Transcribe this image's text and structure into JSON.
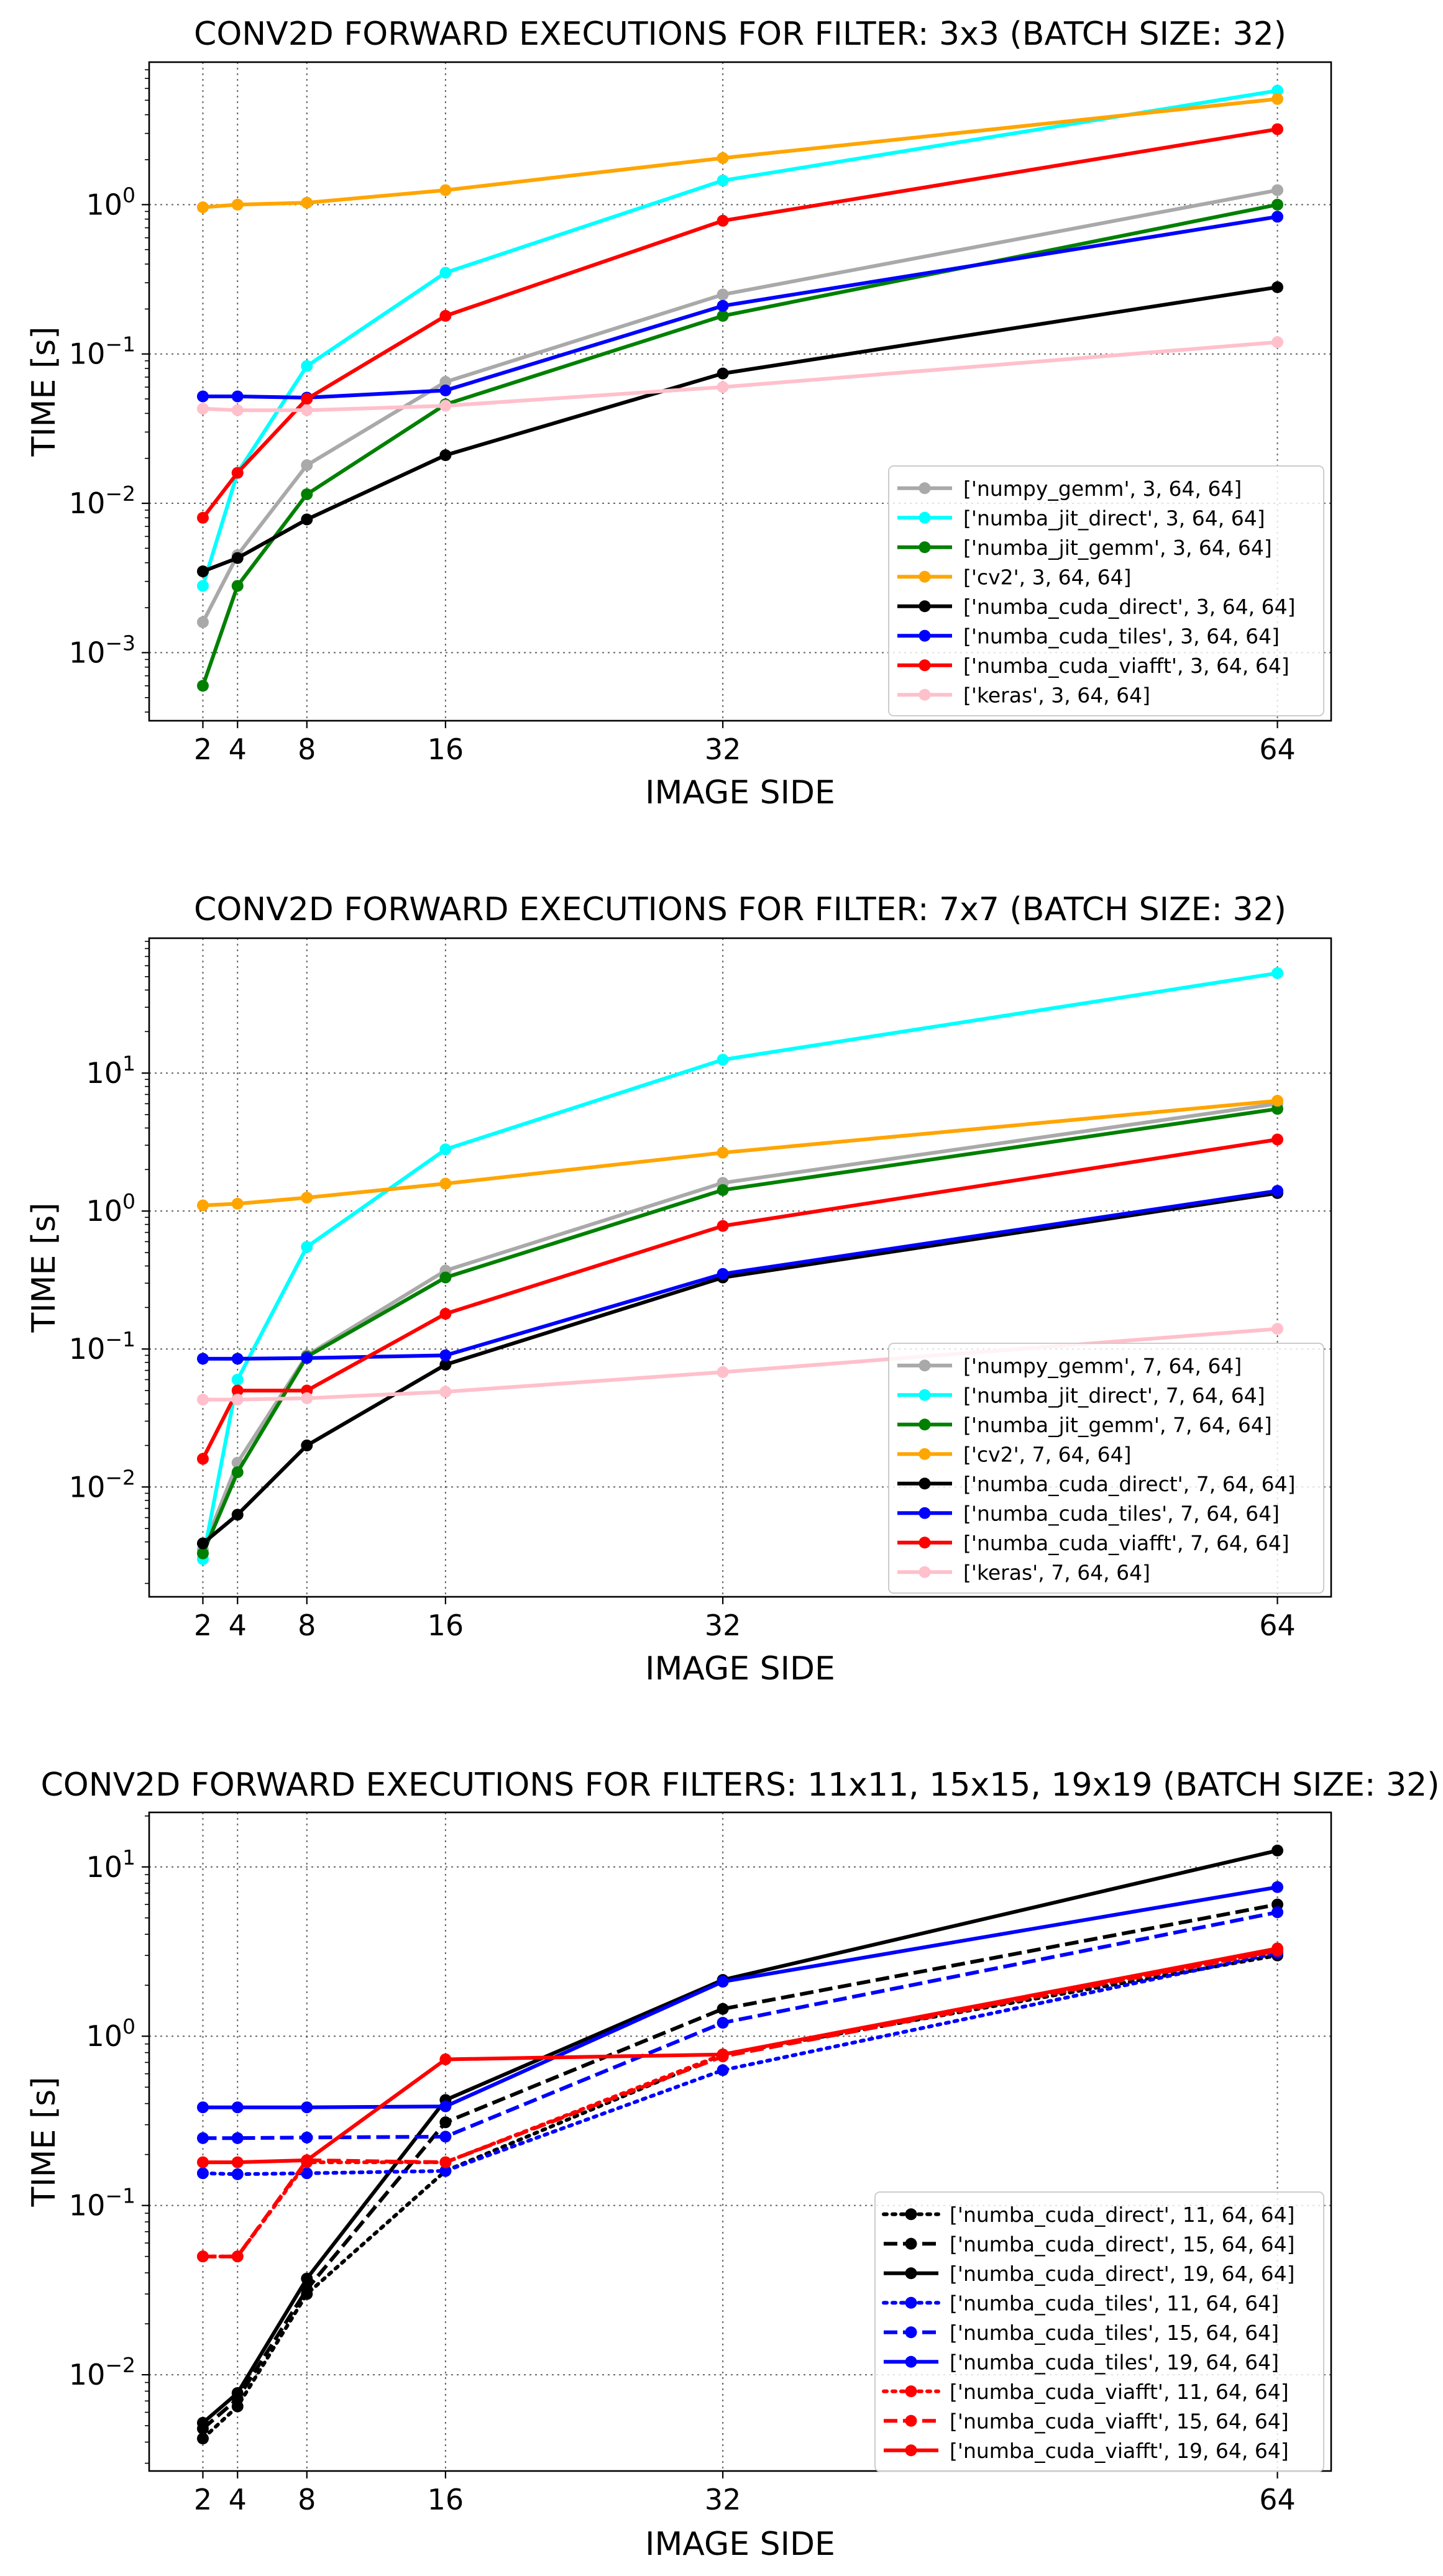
{
  "chart_data": [
    {
      "type": "line",
      "title": "CONV2D FORWARD EXECUTIONS FOR FILTER: 3x3 (BATCH SIZE: 32)",
      "xlabel": "IMAGE SIDE",
      "ylabel": "TIME [s]",
      "yscale": "log",
      "xlim": [
        -1.1,
        67.1
      ],
      "ylim": [
        0.00035,
        9
      ],
      "grid": true,
      "legend_position": "lower-right",
      "x": [
        2,
        4,
        8,
        16,
        32,
        64
      ],
      "xticks": [
        "2",
        "4",
        "8",
        "16",
        "32",
        "64"
      ],
      "yticks": [
        {
          "exp": -3,
          "label_base": "10",
          "label_exp": "−3"
        },
        {
          "exp": -2,
          "label_base": "10",
          "label_exp": "−2"
        },
        {
          "exp": -1,
          "label_base": "10",
          "label_exp": "−1"
        },
        {
          "exp": 0,
          "label_base": "10",
          "label_exp": "0"
        }
      ],
      "series": [
        {
          "name": "['numpy_gemm', 3, 64, 64]",
          "color": "#a9a9a9",
          "style": "solid",
          "values": [
            0.0016,
            0.0045,
            0.018,
            0.065,
            0.25,
            1.25
          ]
        },
        {
          "name": "['numba_jit_direct', 3, 64, 64]",
          "color": "#00ffff",
          "style": "solid",
          "values": [
            0.0028,
            0.016,
            0.083,
            0.35,
            1.45,
            5.8
          ]
        },
        {
          "name": "['numba_jit_gemm', 3, 64, 64]",
          "color": "#008000",
          "style": "solid",
          "values": [
            0.0006,
            0.0028,
            0.0115,
            0.046,
            0.18,
            1.0
          ]
        },
        {
          "name": "['cv2', 3, 64, 64]",
          "color": "#ffa500",
          "style": "solid",
          "values": [
            0.96,
            1.0,
            1.03,
            1.25,
            2.05,
            5.1
          ]
        },
        {
          "name": "['numba_cuda_direct', 3, 64, 64]",
          "color": "#000000",
          "style": "solid",
          "values": [
            0.0035,
            0.0043,
            0.0078,
            0.021,
            0.074,
            0.28
          ]
        },
        {
          "name": "['numba_cuda_tiles', 3, 64, 64]",
          "color": "#0000ff",
          "style": "solid",
          "values": [
            0.052,
            0.052,
            0.051,
            0.057,
            0.21,
            0.83
          ]
        },
        {
          "name": "['numba_cuda_viafft', 3, 64, 64]",
          "color": "#ff0000",
          "style": "solid",
          "values": [
            0.008,
            0.016,
            0.05,
            0.18,
            0.78,
            3.2
          ]
        },
        {
          "name": "['keras', 3, 64, 64]",
          "color": "#ffc0cb",
          "style": "solid",
          "values": [
            0.043,
            0.042,
            0.042,
            0.045,
            0.06,
            0.12
          ]
        }
      ]
    },
    {
      "type": "line",
      "title": "CONV2D FORWARD EXECUTIONS FOR FILTER: 7x7 (BATCH SIZE: 32)",
      "xlabel": "IMAGE SIDE",
      "ylabel": "TIME [s]",
      "yscale": "log",
      "xlim": [
        -1.1,
        67.1
      ],
      "ylim": [
        0.0016,
        95
      ],
      "grid": true,
      "legend_position": "lower-right",
      "x": [
        2,
        4,
        8,
        16,
        32,
        64
      ],
      "xticks": [
        "2",
        "4",
        "8",
        "16",
        "32",
        "64"
      ],
      "yticks": [
        {
          "exp": -2,
          "label_base": "10",
          "label_exp": "−2"
        },
        {
          "exp": -1,
          "label_base": "10",
          "label_exp": "−1"
        },
        {
          "exp": 0,
          "label_base": "10",
          "label_exp": "0"
        },
        {
          "exp": 1,
          "label_base": "10",
          "label_exp": "1"
        }
      ],
      "series": [
        {
          "name": "['numpy_gemm', 7, 64, 64]",
          "color": "#a9a9a9",
          "style": "solid",
          "values": [
            0.0035,
            0.015,
            0.09,
            0.37,
            1.6,
            6.0
          ]
        },
        {
          "name": "['numba_jit_direct', 7, 64, 64]",
          "color": "#00ffff",
          "style": "solid",
          "values": [
            0.003,
            0.06,
            0.55,
            2.8,
            12.5,
            53
          ]
        },
        {
          "name": "['numba_jit_gemm', 7, 64, 64]",
          "color": "#008000",
          "style": "solid",
          "values": [
            0.0033,
            0.0128,
            0.088,
            0.33,
            1.42,
            5.5
          ]
        },
        {
          "name": "['cv2', 7, 64, 64]",
          "color": "#ffa500",
          "style": "solid",
          "values": [
            1.1,
            1.13,
            1.25,
            1.58,
            2.65,
            6.3
          ]
        },
        {
          "name": "['numba_cuda_direct', 7, 64, 64]",
          "color": "#000000",
          "style": "solid",
          "values": [
            0.0039,
            0.0063,
            0.02,
            0.077,
            0.33,
            1.35
          ]
        },
        {
          "name": "['numba_cuda_tiles', 7, 64, 64]",
          "color": "#0000ff",
          "style": "solid",
          "values": [
            0.085,
            0.085,
            0.086,
            0.09,
            0.35,
            1.4
          ]
        },
        {
          "name": "['numba_cuda_viafft', 7, 64, 64]",
          "color": "#ff0000",
          "style": "solid",
          "values": [
            0.016,
            0.05,
            0.05,
            0.18,
            0.78,
            3.3
          ]
        },
        {
          "name": "['keras', 7, 64, 64]",
          "color": "#ffc0cb",
          "style": "solid",
          "values": [
            0.043,
            0.043,
            0.044,
            0.049,
            0.068,
            0.14
          ]
        }
      ]
    },
    {
      "type": "line",
      "title": "CONV2D FORWARD EXECUTIONS FOR FILTERS: 11x11, 15x15, 19x19 (BATCH SIZE: 32)",
      "xlabel": "IMAGE SIDE",
      "ylabel": "TIME [s]",
      "yscale": "log",
      "xlim": [
        -1.1,
        67.1
      ],
      "ylim": [
        0.0027,
        21
      ],
      "grid": true,
      "legend_position": "lower-right",
      "x": [
        2,
        4,
        8,
        16,
        32,
        64
      ],
      "xticks": [
        "2",
        "4",
        "8",
        "16",
        "32",
        "64"
      ],
      "yticks": [
        {
          "exp": -2,
          "label_base": "10",
          "label_exp": "−2"
        },
        {
          "exp": -1,
          "label_base": "10",
          "label_exp": "−1"
        },
        {
          "exp": 0,
          "label_base": "10",
          "label_exp": "0"
        },
        {
          "exp": 1,
          "label_base": "10",
          "label_exp": "1"
        }
      ],
      "series": [
        {
          "name": "['numba_cuda_direct', 11, 64, 64]",
          "color": "#000000",
          "style": "dotted",
          "values": [
            0.0042,
            0.0065,
            0.03,
            0.16,
            0.78,
            3.0
          ]
        },
        {
          "name": "['numba_cuda_direct', 15, 64, 64]",
          "color": "#000000",
          "style": "dashed",
          "values": [
            0.0048,
            0.0072,
            0.032,
            0.31,
            1.45,
            6.0
          ]
        },
        {
          "name": "['numba_cuda_direct', 19, 64, 64]",
          "color": "#000000",
          "style": "solid",
          "values": [
            0.0052,
            0.0078,
            0.037,
            0.42,
            2.15,
            12.5
          ]
        },
        {
          "name": "['numba_cuda_tiles', 11, 64, 64]",
          "color": "#0000ff",
          "style": "dotted",
          "values": [
            0.155,
            0.153,
            0.155,
            0.16,
            0.63,
            3.1
          ]
        },
        {
          "name": "['numba_cuda_tiles', 15, 64, 64]",
          "color": "#0000ff",
          "style": "dashed",
          "values": [
            0.25,
            0.25,
            0.252,
            0.255,
            1.2,
            5.4
          ]
        },
        {
          "name": "['numba_cuda_tiles', 19, 64, 64]",
          "color": "#0000ff",
          "style": "solid",
          "values": [
            0.38,
            0.38,
            0.38,
            0.385,
            2.1,
            7.6
          ]
        },
        {
          "name": "['numba_cuda_viafft', 11, 64, 64]",
          "color": "#ff0000",
          "style": "dotted",
          "values": [
            0.05,
            0.05,
            0.18,
            0.18,
            0.78,
            3.2
          ]
        },
        {
          "name": "['numba_cuda_viafft', 15, 64, 64]",
          "color": "#ff0000",
          "style": "dashed",
          "values": [
            0.05,
            0.05,
            0.185,
            0.18,
            0.76,
            3.2
          ]
        },
        {
          "name": "['numba_cuda_viafft', 19, 64, 64]",
          "color": "#ff0000",
          "style": "solid",
          "values": [
            0.18,
            0.18,
            0.185,
            0.73,
            0.78,
            3.3
          ]
        }
      ]
    }
  ]
}
